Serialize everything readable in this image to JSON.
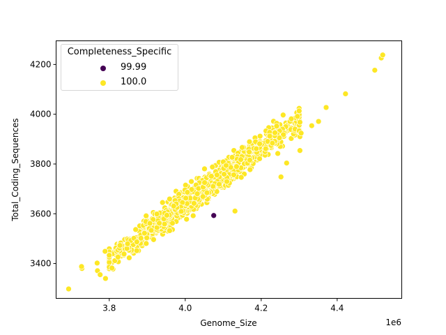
{
  "chart_data": {
    "type": "scatter",
    "title": "",
    "xlabel": "Genome_Size",
    "ylabel": "Total_Coding_Sequences",
    "x_offset_label": "1e6",
    "xlim": [
      3660000.0,
      4570000.0
    ],
    "ylim": [
      3260,
      4295
    ],
    "x_ticks": [
      3800000.0,
      4000000.0,
      4200000.0,
      4400000.0
    ],
    "x_tick_labels": [
      "3.8",
      "4.0",
      "4.2",
      "4.4"
    ],
    "y_ticks": [
      3400,
      3600,
      3800,
      4000,
      4200
    ],
    "y_tick_labels": [
      "3400",
      "3600",
      "3800",
      "4000",
      "4200"
    ],
    "grid": false,
    "legend": {
      "title": "Completeness_Specific",
      "position": "upper left",
      "entries": [
        {
          "label": "99.99",
          "color": "#440154"
        },
        {
          "label": "100.0",
          "color": "#fde725"
        }
      ]
    },
    "series": [
      {
        "name": "100.0",
        "color": "#fde725",
        "trend": {
          "x_start": 3800000.0,
          "y_start": 3415,
          "x_end": 4300000.0,
          "y_end": 3985,
          "spread_y": 45,
          "count": 1400
        },
        "notable_points": [
          [
            3693000.0,
            3298
          ],
          [
            3728000.0,
            3380
          ],
          [
            3727000.0,
            3388
          ],
          [
            3768000.0,
            3402
          ],
          [
            3769000.0,
            3371
          ],
          [
            3776000.0,
            3355
          ],
          [
            3790000.0,
            3340
          ],
          [
            3789000.0,
            3449
          ],
          [
            3807000.0,
            3382
          ],
          [
            4131000.0,
            3611
          ],
          [
            4252000.0,
            3748
          ],
          [
            4267000.0,
            3804
          ],
          [
            4302000.0,
            3854
          ],
          [
            4302000.0,
            3910
          ],
          [
            4305000.0,
            3924
          ],
          [
            4302000.0,
            3968
          ],
          [
            4333000.0,
            3954
          ],
          [
            4351000.0,
            3971
          ],
          [
            4371000.0,
            4027
          ],
          [
            4422000.0,
            4082
          ],
          [
            4499000.0,
            4177
          ],
          [
            4516000.0,
            4226
          ],
          [
            4520000.0,
            4238
          ]
        ]
      },
      {
        "name": "99.99",
        "color": "#440154",
        "points": [
          [
            4075000.0,
            3593
          ]
        ]
      }
    ]
  }
}
